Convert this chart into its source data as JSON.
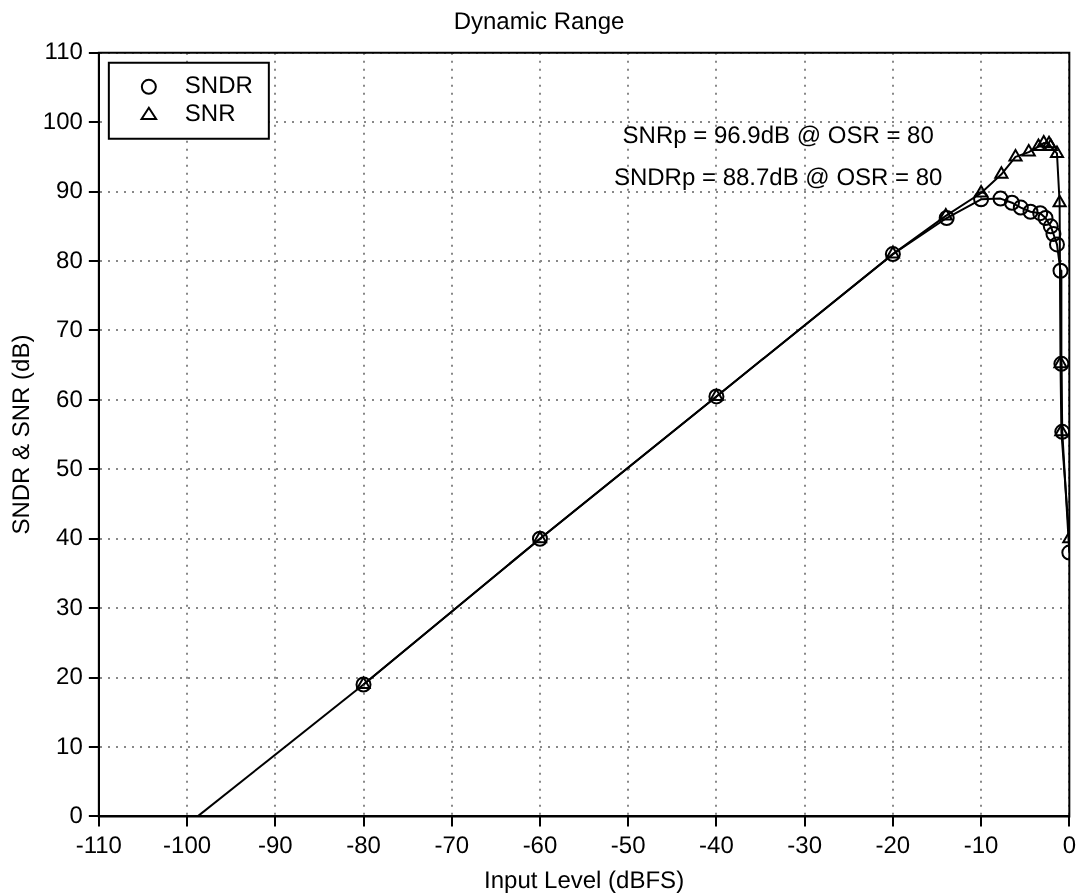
{
  "chart_data": {
    "type": "line",
    "title": "Dynamic Range",
    "xlabel": "Input Level (dBFS)",
    "ylabel": "SNDR & SNR (dB)",
    "annotations": [
      "SNRp = 96.9dB @ OSR = 80",
      "SNDRp = 88.7dB @ OSR = 80"
    ],
    "series": [
      {
        "name": "SNDR",
        "color": "#000000",
        "marker": "circle",
        "x": [
          -80,
          -60,
          -40,
          -20,
          -13.9,
          -10,
          -7.8,
          -6.5,
          -5.5,
          -4.4,
          -3.3,
          -2.7,
          -2.1,
          -1.8,
          -1.4,
          -1,
          -0.9,
          -0.8,
          0
        ],
        "values": [
          19,
          40,
          60.5,
          81,
          86.2,
          88.9,
          89,
          88.4,
          87.7,
          87.1,
          86.9,
          86.2,
          85,
          83.9,
          82.4,
          78.6,
          65.2,
          55.4,
          38
        ]
      },
      {
        "name": "SNR",
        "color": "#000000",
        "marker": "triangle",
        "x": [
          -80,
          -60,
          -40,
          -20,
          -14,
          -10,
          -7.7,
          -6.1,
          -4.6,
          -3.5,
          -2.9,
          -2.3,
          -2.1,
          -1.4,
          -1.1,
          -1,
          -0.9,
          0
        ],
        "values": [
          19,
          40,
          60.5,
          81,
          86.5,
          89.8,
          92.5,
          95,
          95.7,
          96.5,
          97,
          96.9,
          96.5,
          95.5,
          88.4,
          65.2,
          55.4,
          40
        ]
      },
      {
        "color": "#000000",
        "marker": "none",
        "x": [
          -98.8,
          -80
        ],
        "values": [
          0,
          19
        ]
      }
    ],
    "xlim": [
      -110,
      0
    ],
    "xticks": [
      -110,
      -100,
      -90,
      -80,
      -70,
      -60,
      -50,
      -40,
      -30,
      -20,
      -10,
      0
    ],
    "ylim": [
      0,
      110
    ],
    "yticks": [
      0,
      10,
      20,
      30,
      40,
      50,
      60,
      70,
      80,
      90,
      100,
      110
    ],
    "grid": true,
    "legend": "top left",
    "line_style": "solid"
  }
}
